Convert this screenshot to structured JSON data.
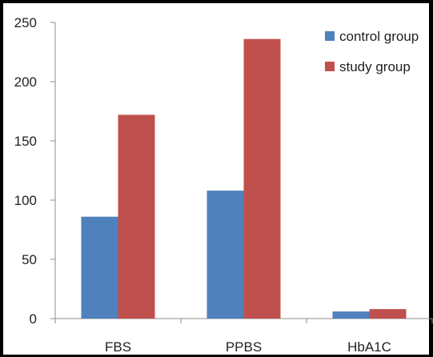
{
  "chart_data": {
    "type": "bar",
    "categories": [
      "FBS",
      "PPBS",
      "HbA1C"
    ],
    "series": [
      {
        "name": "control group",
        "values": [
          86,
          108,
          6
        ],
        "color": "#4F81BD"
      },
      {
        "name": "study group",
        "values": [
          172,
          236,
          8
        ],
        "color": "#C0504D"
      }
    ],
    "ylim": [
      0,
      250
    ],
    "yticks": [
      "0",
      "50",
      "100",
      "150",
      "200",
      "250"
    ],
    "grid": false,
    "legend_position": "top-right",
    "title": "",
    "xlabel": "",
    "ylabel": ""
  }
}
